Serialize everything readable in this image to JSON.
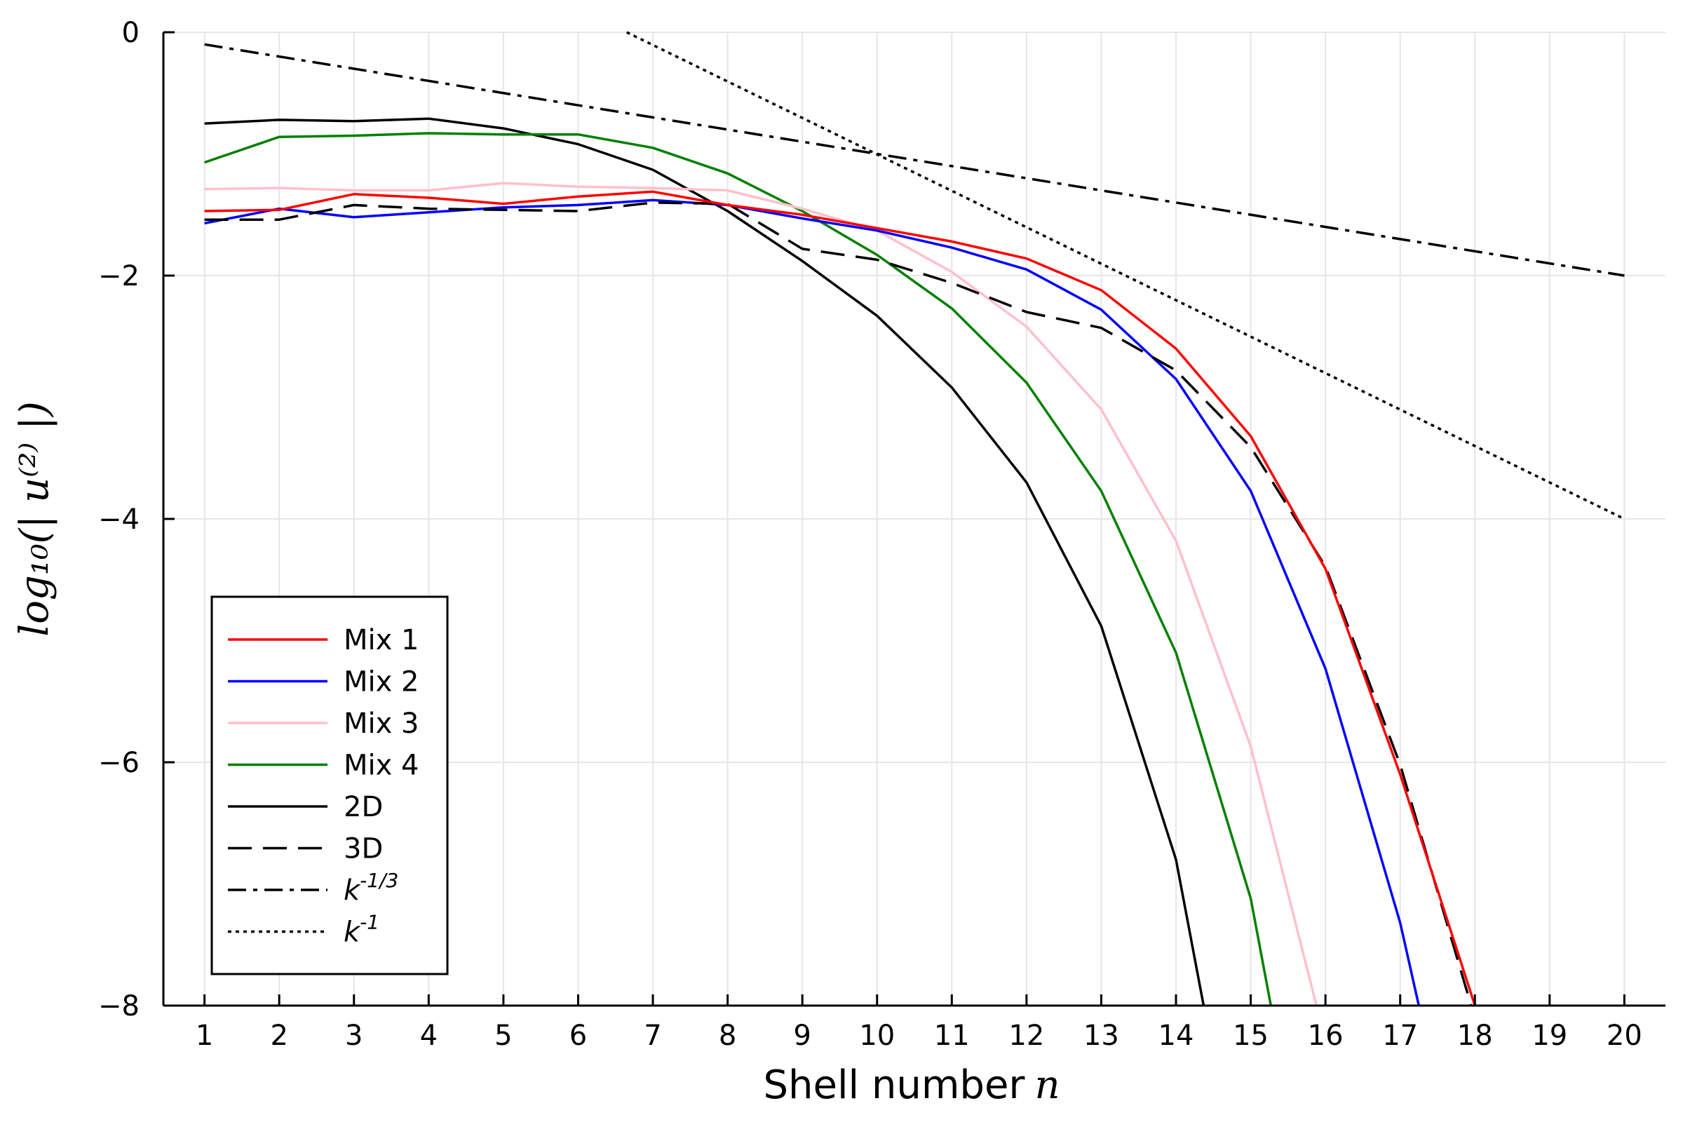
{
  "chart_data": {
    "type": "line",
    "xlabel": "Shell number",
    "xlabel_symbol": "n",
    "ylabel": "log₁₀(| u⁽²⁾ |)",
    "xlim": [
      0.45,
      20.55
    ],
    "ylim": [
      -8,
      0
    ],
    "xticks": [
      1,
      2,
      3,
      4,
      5,
      6,
      7,
      8,
      9,
      10,
      11,
      12,
      13,
      14,
      15,
      16,
      17,
      18,
      19,
      20
    ],
    "yticks": [
      0,
      -2,
      -4,
      -6,
      -8
    ],
    "ytick_labels": [
      "0",
      "−2",
      "−4",
      "−6",
      "−8"
    ],
    "grid": true,
    "legend_position": "bottom-left",
    "series": [
      {
        "name": "Mix 1",
        "color": "#ff0000",
        "dash": "solid",
        "x": [
          1,
          2,
          3,
          4,
          5,
          6,
          7,
          8,
          9,
          10,
          11,
          12,
          13,
          14,
          15,
          16,
          17,
          18
        ],
        "y": [
          -1.47,
          -1.46,
          -1.33,
          -1.36,
          -1.41,
          -1.35,
          -1.31,
          -1.42,
          -1.5,
          -1.61,
          -1.72,
          -1.86,
          -2.12,
          -2.6,
          -3.32,
          -4.41,
          -6.1,
          -8.0
        ]
      },
      {
        "name": "Mix 2",
        "color": "#0000ff",
        "dash": "solid",
        "x": [
          1,
          2,
          3,
          4,
          5,
          6,
          7,
          8,
          9,
          10,
          11,
          12,
          13,
          14,
          15,
          16,
          17,
          17.25
        ],
        "y": [
          -1.57,
          -1.45,
          -1.52,
          -1.48,
          -1.44,
          -1.42,
          -1.38,
          -1.42,
          -1.53,
          -1.63,
          -1.77,
          -1.95,
          -2.28,
          -2.85,
          -3.77,
          -5.23,
          -7.32,
          -8.0
        ]
      },
      {
        "name": "Mix 3",
        "color": "#ffc0cb",
        "dash": "solid",
        "x": [
          1,
          2,
          3,
          4,
          5,
          6,
          7,
          8,
          9,
          10,
          11,
          12,
          13,
          14,
          15,
          15.88
        ],
        "y": [
          -1.29,
          -1.28,
          -1.3,
          -1.3,
          -1.24,
          -1.27,
          -1.28,
          -1.3,
          -1.45,
          -1.63,
          -1.97,
          -2.42,
          -3.1,
          -4.18,
          -5.87,
          -8.0
        ]
      },
      {
        "name": "Mix 4",
        "color": "#008000",
        "dash": "solid",
        "x": [
          1,
          2,
          3,
          4,
          5,
          6,
          7,
          8,
          9,
          10,
          11,
          12,
          13,
          14,
          15,
          15.27
        ],
        "y": [
          -1.07,
          -0.86,
          -0.85,
          -0.83,
          -0.84,
          -0.84,
          -0.95,
          -1.16,
          -1.47,
          -1.83,
          -2.27,
          -2.88,
          -3.77,
          -5.1,
          -7.12,
          -8.0
        ]
      },
      {
        "name": "2D",
        "color": "#000000",
        "dash": "solid",
        "x": [
          1,
          2,
          3,
          4,
          5,
          6,
          7,
          8,
          9,
          10,
          11,
          12,
          13,
          14,
          14.37
        ],
        "y": [
          -0.75,
          -0.72,
          -0.73,
          -0.71,
          -0.79,
          -0.92,
          -1.13,
          -1.47,
          -1.88,
          -2.33,
          -2.92,
          -3.7,
          -4.88,
          -6.8,
          -8.0
        ]
      },
      {
        "name": "3D",
        "color": "#000000",
        "dash": "long",
        "x": [
          1,
          2,
          3,
          4,
          5,
          6,
          7,
          8,
          9,
          10,
          11,
          12,
          13,
          14,
          15,
          16,
          17,
          17.95
        ],
        "y": [
          -1.54,
          -1.54,
          -1.42,
          -1.45,
          -1.46,
          -1.47,
          -1.4,
          -1.41,
          -1.78,
          -1.87,
          -2.06,
          -2.3,
          -2.43,
          -2.78,
          -3.41,
          -4.39,
          -6.02,
          -8.0
        ]
      },
      {
        "name": "k^{-1/3}",
        "color": "#000000",
        "dash": "dashdot",
        "x": [
          1,
          20
        ],
        "y": [
          -0.1,
          -2.0
        ]
      },
      {
        "name": "k^{-1}",
        "color": "#000000",
        "dash": "dot",
        "x": [
          6.65,
          20
        ],
        "y": [
          0.0,
          -4.0
        ]
      }
    ]
  }
}
